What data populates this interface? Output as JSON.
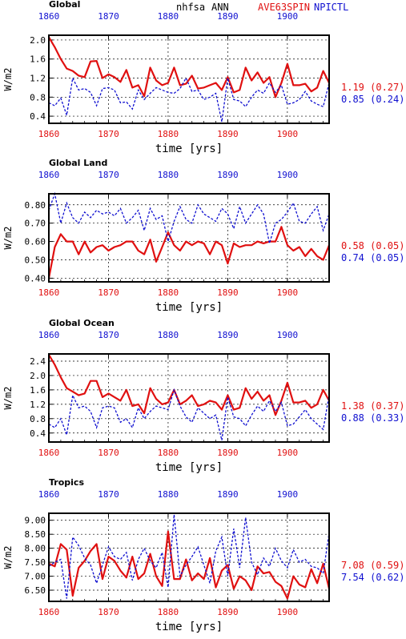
{
  "header": {
    "variable": "nhfsa",
    "season": "ANN",
    "case_red": "AVE63SPIN",
    "case_blue": "NPICTL"
  },
  "colors": {
    "red": "#e01010",
    "blue": "#1010d0",
    "black": "#000000"
  },
  "chart_data": [
    {
      "type": "line",
      "title": "Global",
      "xlabel": "time [yrs]",
      "ylabel": "W/m2",
      "xlim": [
        1860,
        1907
      ],
      "ylim": [
        0.25,
        2.1
      ],
      "yticks": [
        "0.4",
        "0.8",
        "1.2",
        "1.6",
        "2.0"
      ],
      "xticks": [
        "1860",
        "1870",
        "1880",
        "1890",
        "1900"
      ],
      "grid": true,
      "x": [
        1860,
        1861,
        1862,
        1863,
        1864,
        1865,
        1866,
        1867,
        1868,
        1869,
        1870,
        1871,
        1872,
        1873,
        1874,
        1875,
        1876,
        1877,
        1878,
        1879,
        1880,
        1881,
        1882,
        1883,
        1884,
        1885,
        1886,
        1887,
        1888,
        1889,
        1890,
        1891,
        1892,
        1893,
        1894,
        1895,
        1896,
        1897,
        1898,
        1899,
        1900,
        1901,
        1902,
        1903,
        1904,
        1905,
        1906,
        1907
      ],
      "series": [
        {
          "values": [
            2.06,
            1.85,
            1.6,
            1.4,
            1.35,
            1.25,
            1.22,
            1.55,
            1.56,
            1.2,
            1.28,
            1.22,
            1.12,
            1.37,
            1.0,
            1.05,
            0.82,
            1.42,
            1.15,
            1.05,
            1.1,
            1.42,
            1.05,
            1.08,
            1.25,
            0.98,
            1.0,
            1.05,
            1.1,
            0.95,
            1.22,
            0.9,
            0.95,
            1.42,
            1.15,
            1.32,
            1.1,
            1.22,
            0.8,
            1.1,
            1.5,
            1.05,
            1.05,
            1.08,
            0.92,
            1.0,
            1.35,
            1.1
          ]
        },
        {
          "values": [
            0.68,
            0.62,
            0.78,
            0.42,
            1.2,
            0.95,
            0.98,
            0.9,
            0.62,
            0.98,
            1.0,
            0.95,
            0.68,
            0.7,
            0.55,
            0.95,
            0.75,
            0.88,
            1.0,
            0.95,
            0.9,
            0.88,
            0.98,
            1.2,
            0.92,
            0.95,
            0.75,
            0.8,
            0.88,
            0.28,
            1.2,
            0.75,
            0.72,
            0.6,
            0.8,
            0.95,
            0.88,
            1.1,
            0.9,
            1.05,
            0.65,
            0.68,
            0.75,
            0.92,
            0.72,
            0.65,
            0.6,
            1.1
          ]
        }
      ],
      "avg_labels": [
        {
          "value": "1.19",
          "sd": "(0.27)"
        },
        {
          "value": "0.85",
          "sd": "(0.24)"
        }
      ]
    },
    {
      "type": "line",
      "title": "Global Land",
      "xlabel": "time [yrs]",
      "ylabel": "W/m2",
      "xlim": [
        1860,
        1907
      ],
      "ylim": [
        0.38,
        0.86
      ],
      "yticks": [
        "0.40",
        "0.50",
        "0.60",
        "0.70",
        "0.80"
      ],
      "xticks": [
        "1860",
        "1870",
        "1880",
        "1890",
        "1900"
      ],
      "grid": true,
      "x": [
        1860,
        1861,
        1862,
        1863,
        1864,
        1865,
        1866,
        1867,
        1868,
        1869,
        1870,
        1871,
        1872,
        1873,
        1874,
        1875,
        1876,
        1877,
        1878,
        1879,
        1880,
        1881,
        1882,
        1883,
        1884,
        1885,
        1886,
        1887,
        1888,
        1889,
        1890,
        1891,
        1892,
        1893,
        1894,
        1895,
        1896,
        1897,
        1898,
        1899,
        1900,
        1901,
        1902,
        1903,
        1904,
        1905,
        1906,
        1907
      ],
      "series": [
        {
          "values": [
            0.4,
            0.57,
            0.64,
            0.6,
            0.6,
            0.53,
            0.6,
            0.54,
            0.57,
            0.58,
            0.55,
            0.57,
            0.58,
            0.6,
            0.6,
            0.55,
            0.53,
            0.61,
            0.49,
            0.57,
            0.65,
            0.58,
            0.55,
            0.6,
            0.58,
            0.6,
            0.59,
            0.53,
            0.6,
            0.58,
            0.48,
            0.59,
            0.57,
            0.58,
            0.58,
            0.6,
            0.59,
            0.6,
            0.6,
            0.68,
            0.58,
            0.55,
            0.57,
            0.52,
            0.56,
            0.52,
            0.5,
            0.58
          ]
        },
        {
          "values": [
            0.77,
            0.86,
            0.7,
            0.81,
            0.73,
            0.7,
            0.76,
            0.73,
            0.77,
            0.75,
            0.76,
            0.74,
            0.78,
            0.7,
            0.73,
            0.77,
            0.66,
            0.78,
            0.72,
            0.74,
            0.6,
            0.71,
            0.79,
            0.72,
            0.7,
            0.8,
            0.75,
            0.73,
            0.71,
            0.78,
            0.75,
            0.67,
            0.79,
            0.7,
            0.75,
            0.8,
            0.75,
            0.59,
            0.7,
            0.72,
            0.76,
            0.81,
            0.71,
            0.7,
            0.75,
            0.79,
            0.66,
            0.75
          ]
        }
      ],
      "avg_labels": [
        {
          "value": "0.58",
          "sd": "(0.05)"
        },
        {
          "value": "0.74",
          "sd": "(0.05)"
        }
      ]
    },
    {
      "type": "line",
      "title": "Global Ocean",
      "xlabel": "time [yrs]",
      "ylabel": "W/m2",
      "xlim": [
        1860,
        1907
      ],
      "ylim": [
        0.15,
        2.6
      ],
      "yticks": [
        "0.4",
        "0.8",
        "1.2",
        "1.6",
        "2.0",
        "2.4"
      ],
      "xticks": [
        "1860",
        "1870",
        "1880",
        "1890",
        "1900"
      ],
      "grid": true,
      "x": [
        1860,
        1861,
        1862,
        1863,
        1864,
        1865,
        1866,
        1867,
        1868,
        1869,
        1870,
        1871,
        1872,
        1873,
        1874,
        1875,
        1876,
        1877,
        1878,
        1879,
        1880,
        1881,
        1882,
        1883,
        1884,
        1885,
        1886,
        1887,
        1888,
        1889,
        1890,
        1891,
        1892,
        1893,
        1894,
        1895,
        1896,
        1897,
        1898,
        1899,
        1900,
        1901,
        1902,
        1903,
        1904,
        1905,
        1906,
        1907
      ],
      "series": [
        {
          "values": [
            2.58,
            2.3,
            1.95,
            1.65,
            1.55,
            1.45,
            1.5,
            1.85,
            1.85,
            1.4,
            1.5,
            1.4,
            1.3,
            1.6,
            1.15,
            1.2,
            0.95,
            1.65,
            1.35,
            1.2,
            1.25,
            1.6,
            1.2,
            1.3,
            1.45,
            1.15,
            1.2,
            1.3,
            1.25,
            1.05,
            1.45,
            1.05,
            1.1,
            1.65,
            1.35,
            1.55,
            1.3,
            1.45,
            0.9,
            1.3,
            1.8,
            1.25,
            1.25,
            1.3,
            1.1,
            1.2,
            1.6,
            1.3
          ]
        },
        {
          "values": [
            0.65,
            0.55,
            0.8,
            0.35,
            1.45,
            1.1,
            1.15,
            1.0,
            0.55,
            1.1,
            1.15,
            1.1,
            0.7,
            0.8,
            0.55,
            1.1,
            0.8,
            1.0,
            1.15,
            1.1,
            1.05,
            1.6,
            1.15,
            0.85,
            0.7,
            1.1,
            0.95,
            0.8,
            0.9,
            0.2,
            1.4,
            0.85,
            0.8,
            0.6,
            0.9,
            1.15,
            1.0,
            1.3,
            1.0,
            1.25,
            0.6,
            0.65,
            0.85,
            1.05,
            0.8,
            0.65,
            0.5,
            1.45
          ]
        }
      ],
      "avg_labels": [
        {
          "value": "1.38",
          "sd": "(0.37)"
        },
        {
          "value": "0.88",
          "sd": "(0.33)"
        }
      ]
    },
    {
      "type": "line",
      "title": "Tropics",
      "xlabel": "time [yrs]",
      "ylabel": "W/m2",
      "xlim": [
        1860,
        1907
      ],
      "ylim": [
        6.1,
        9.25
      ],
      "yticks": [
        "6.50",
        "7.00",
        "7.50",
        "8.00",
        "8.50",
        "9.00"
      ],
      "xticks": [
        "1860",
        "1870",
        "1880",
        "1890",
        "1900"
      ],
      "grid": true,
      "x": [
        1860,
        1861,
        1862,
        1863,
        1864,
        1865,
        1866,
        1867,
        1868,
        1869,
        1870,
        1871,
        1872,
        1873,
        1874,
        1875,
        1876,
        1877,
        1878,
        1879,
        1880,
        1881,
        1882,
        1883,
        1884,
        1885,
        1886,
        1887,
        1888,
        1889,
        1890,
        1891,
        1892,
        1893,
        1894,
        1895,
        1896,
        1897,
        1898,
        1899,
        1900,
        1901,
        1902,
        1903,
        1904,
        1905,
        1906,
        1907
      ],
      "series": [
        {
          "values": [
            7.45,
            7.35,
            8.15,
            7.95,
            6.3,
            7.3,
            7.55,
            7.9,
            8.15,
            6.9,
            7.7,
            7.55,
            7.2,
            6.95,
            7.7,
            6.9,
            7.1,
            7.8,
            7.0,
            6.65,
            8.6,
            6.9,
            6.9,
            7.6,
            6.85,
            7.1,
            6.9,
            7.65,
            6.6,
            7.2,
            7.4,
            6.55,
            7.0,
            6.85,
            6.5,
            7.35,
            7.1,
            7.15,
            6.8,
            6.65,
            6.2,
            7.0,
            6.7,
            6.6,
            7.25,
            6.75,
            7.45,
            6.55
          ]
        },
        {
          "values": [
            7.35,
            7.5,
            7.6,
            6.2,
            8.4,
            8.1,
            7.65,
            7.4,
            6.75,
            7.4,
            8.05,
            7.7,
            7.6,
            7.85,
            6.85,
            7.6,
            8.0,
            7.55,
            7.3,
            7.85,
            6.6,
            9.2,
            7.0,
            7.4,
            7.7,
            8.05,
            7.4,
            6.75,
            7.9,
            8.4,
            7.0,
            8.7,
            7.3,
            9.1,
            7.5,
            7.05,
            7.65,
            7.35,
            8.0,
            7.55,
            7.3,
            7.95,
            7.5,
            7.6,
            7.35,
            7.3,
            7.1,
            8.55
          ]
        }
      ],
      "avg_labels": [
        {
          "value": "7.08",
          "sd": "(0.59)"
        },
        {
          "value": "7.54",
          "sd": "(0.62)"
        }
      ]
    }
  ]
}
